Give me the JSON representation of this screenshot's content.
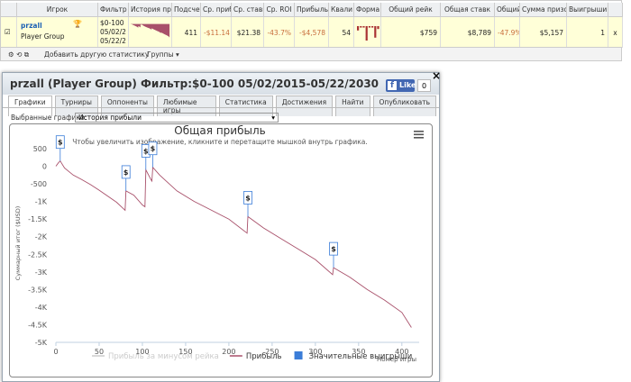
{
  "table": {
    "headers": [
      "Игрок",
      "Фильтр",
      "История при",
      "Подсчет",
      "Ср. приб",
      "Ср. ставк",
      "Ср. ROI",
      "Прибыль",
      "Квали",
      "Форма",
      "Общий рейк",
      "Общая ставк",
      "Общий ROI",
      "Сумма призо",
      "Выигрыши"
    ],
    "row": {
      "player": "przall",
      "group": "Player Group",
      "filter": [
        "$0-100",
        "05/02/2",
        "05/22/2"
      ],
      "count": 411,
      "avg_profit": "-$11.14",
      "avg_stake": "$21.38",
      "avg_roi": "-43.7%",
      "profit": "-$4,578",
      "qualified": 54,
      "form": [
        -3,
        -1,
        -1,
        -10,
        -1,
        -1,
        -8,
        -2
      ],
      "total_rake": "$759",
      "total_stake": "$8,789",
      "total_roi": "-47.9%",
      "prize_sum": "$5,157",
      "wins": 1,
      "remove": "x"
    },
    "toolbar": {
      "add": "Добавить другую статистику",
      "groups": "Группы"
    }
  },
  "popup": {
    "title": "przall (Player Group) Фильтр:$0-100 05/02/2015-05/22/2030",
    "like": "Like",
    "like_count": 0,
    "close": "×",
    "tabs": [
      "Графики",
      "Турниры",
      "Оппоненты",
      "Любимые игры",
      "Статистика",
      "Достижения",
      "Найти",
      "Опубликовать"
    ],
    "select_label": "Выбранные графики:",
    "select_value": "История прибыли"
  },
  "chart_data": {
    "type": "line",
    "title": "Общая прибыль",
    "subtitle": "Чтобы увеличить изображение, кликните и перетащите мышкой внутрь графика.",
    "x_label": "Номер игры",
    "y_label": "Суммарный итог ($USD)",
    "grid": false,
    "xlim": [
      0,
      420
    ],
    "xticks": [
      0,
      50,
      100,
      150,
      200,
      250,
      300,
      350,
      400
    ],
    "ylim": [
      -5000,
      500
    ],
    "yticks": [
      500,
      0,
      -500,
      {
        "value": -1000,
        "label": "-1K"
      },
      {
        "value": -1500,
        "label": "-1.5K"
      },
      {
        "value": -2000,
        "label": "-2K"
      },
      {
        "value": -2500,
        "label": "-2.5K"
      },
      {
        "value": -3000,
        "label": "-3K"
      },
      {
        "value": -3500,
        "label": "-3.5K"
      },
      {
        "value": -4000,
        "label": "-4K"
      },
      {
        "value": -4500,
        "label": "-4.5K"
      },
      {
        "value": -5000,
        "label": "-5K"
      }
    ],
    "x": [
      0,
      3,
      5,
      10,
      20,
      30,
      40,
      50,
      60,
      70,
      80,
      81,
      90,
      100,
      103,
      104,
      110,
      111,
      112,
      120,
      140,
      160,
      180,
      200,
      221,
      222,
      240,
      260,
      280,
      300,
      320,
      321,
      340,
      360,
      380,
      400,
      411
    ],
    "series": [
      {
        "name": "Прибыль за минусом рейка",
        "color": "#cccccc",
        "visible": false
      },
      {
        "name": "Прибыль",
        "color": "#a8506a",
        "visible": true,
        "values": [
          0,
          100,
          150,
          -50,
          -250,
          -380,
          -520,
          -680,
          -850,
          -1020,
          -1250,
          -700,
          -820,
          -1100,
          -1150,
          -100,
          -380,
          -420,
          -30,
          -250,
          -700,
          -1000,
          -1250,
          -1500,
          -1900,
          -1430,
          -1750,
          -2050,
          -2350,
          -2650,
          -3080,
          -2880,
          -3150,
          -3500,
          -3800,
          -4150,
          -4578
        ]
      },
      {
        "name": "Значительные выигрыши",
        "color": "#3b7dd8",
        "visible": true,
        "label": "$",
        "x": [
          5,
          81,
          104,
          112,
          222,
          321
        ],
        "values": [
          150,
          -700,
          -100,
          -30,
          -1430,
          -2880
        ]
      }
    ]
  }
}
